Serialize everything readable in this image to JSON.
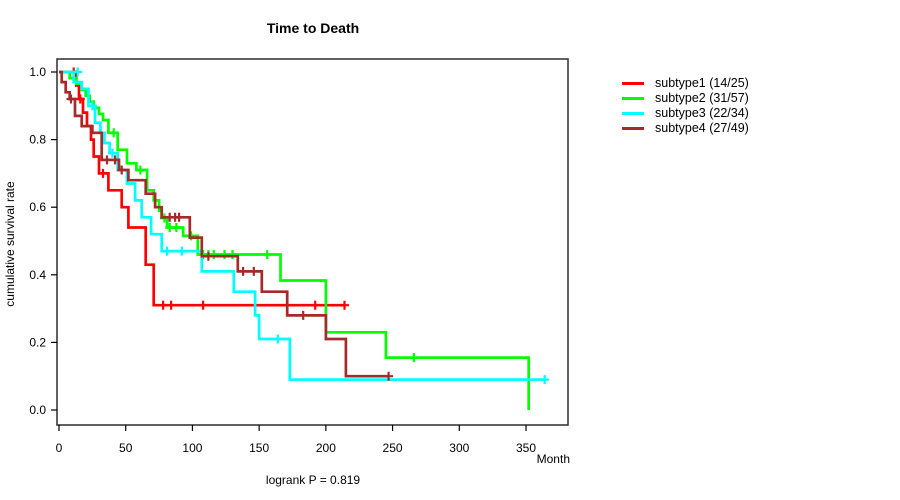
{
  "chart_data": {
    "type": "line",
    "subtype": "kaplan-meier-step-curves",
    "title": "Time to Death",
    "xlabel": "Month",
    "ylabel": "cumulative survival rate",
    "footnote": "logrank P = 0.819",
    "x_axis": {
      "min": 0,
      "max": 381,
      "ticks": [
        {
          "v": 0,
          "label": "0"
        },
        {
          "v": 50,
          "label": "50"
        },
        {
          "v": 100,
          "label": "100"
        },
        {
          "v": 150,
          "label": "150"
        },
        {
          "v": 200,
          "label": "200"
        },
        {
          "v": 250,
          "label": "250"
        },
        {
          "v": 300,
          "label": "300"
        },
        {
          "v": 350,
          "label": "350"
        }
      ]
    },
    "y_axis": {
      "min": 0,
      "max": 1,
      "ticks": [
        {
          "v": 0.0,
          "label": "0.0"
        },
        {
          "v": 0.2,
          "label": "0.2"
        },
        {
          "v": 0.4,
          "label": "0.4"
        },
        {
          "v": 0.6,
          "label": "0.6"
        },
        {
          "v": 0.8,
          "label": "0.8"
        },
        {
          "v": 1.0,
          "label": "1.0"
        }
      ]
    },
    "legend_position": "right-outside",
    "grid": false,
    "series": [
      {
        "name": "subtype1 (14/25)",
        "color": "#FF0000",
        "steps": [
          [
            0,
            1.0
          ],
          [
            13,
            0.96
          ],
          [
            15,
            0.92
          ],
          [
            18,
            0.88
          ],
          [
            21,
            0.84
          ],
          [
            24,
            0.8
          ],
          [
            26,
            0.75
          ],
          [
            30,
            0.7
          ],
          [
            37,
            0.65
          ],
          [
            47,
            0.6
          ],
          [
            52,
            0.54
          ],
          [
            65,
            0.43
          ],
          [
            71,
            0.31
          ],
          [
            215,
            0.31
          ]
        ],
        "censors": [
          [
            11,
            1.0
          ],
          [
            16,
            0.92
          ],
          [
            33,
            0.7
          ],
          [
            78,
            0.31
          ],
          [
            84,
            0.31
          ],
          [
            108,
            0.31
          ],
          [
            192,
            0.31
          ],
          [
            214,
            0.31
          ]
        ]
      },
      {
        "name": "subtype2 (31/57)",
        "color": "#00FF00",
        "steps": [
          [
            0,
            1.0
          ],
          [
            8,
            0.982
          ],
          [
            13,
            0.965
          ],
          [
            17,
            0.947
          ],
          [
            20,
            0.93
          ],
          [
            23,
            0.912
          ],
          [
            26,
            0.894
          ],
          [
            30,
            0.876
          ],
          [
            33,
            0.858
          ],
          [
            37,
            0.82
          ],
          [
            44,
            0.77
          ],
          [
            51,
            0.73
          ],
          [
            58,
            0.71
          ],
          [
            66,
            0.65
          ],
          [
            71,
            0.62
          ],
          [
            75,
            0.59
          ],
          [
            77,
            0.568
          ],
          [
            81,
            0.54
          ],
          [
            93,
            0.515
          ],
          [
            104,
            0.46
          ],
          [
            166,
            0.383
          ],
          [
            200,
            0.23
          ],
          [
            245,
            0.155
          ],
          [
            352,
            0.0
          ]
        ],
        "censors": [
          [
            41,
            0.82
          ],
          [
            61,
            0.71
          ],
          [
            79,
            0.568
          ],
          [
            83,
            0.54
          ],
          [
            88,
            0.54
          ],
          [
            99,
            0.515
          ],
          [
            108,
            0.46
          ],
          [
            112,
            0.46
          ],
          [
            116,
            0.46
          ],
          [
            124,
            0.46
          ],
          [
            130,
            0.46
          ],
          [
            156,
            0.46
          ],
          [
            266,
            0.155
          ]
        ]
      },
      {
        "name": "subtype3 (22/34)",
        "color": "#00FFFF",
        "steps": [
          [
            0,
            1.0
          ],
          [
            11,
            0.97
          ],
          [
            17,
            0.95
          ],
          [
            22,
            0.9
          ],
          [
            27,
            0.85
          ],
          [
            31,
            0.82
          ],
          [
            34,
            0.79
          ],
          [
            38,
            0.76
          ],
          [
            44,
            0.71
          ],
          [
            51,
            0.67
          ],
          [
            57,
            0.62
          ],
          [
            62,
            0.57
          ],
          [
            69,
            0.52
          ],
          [
            77,
            0.47
          ],
          [
            107,
            0.41
          ],
          [
            131,
            0.35
          ],
          [
            147,
            0.28
          ],
          [
            150,
            0.21
          ],
          [
            173,
            0.09
          ],
          [
            364,
            0.09
          ]
        ],
        "censors": [
          [
            14,
            1.0
          ],
          [
            25,
            0.9
          ],
          [
            40,
            0.76
          ],
          [
            81,
            0.47
          ],
          [
            92,
            0.47
          ],
          [
            164,
            0.21
          ],
          [
            364,
            0.09
          ]
        ]
      },
      {
        "name": "subtype4 (27/49)",
        "color": "#A52A2A",
        "steps": [
          [
            0,
            1.0
          ],
          [
            2,
            0.97
          ],
          [
            5,
            0.94
          ],
          [
            8,
            0.92
          ],
          [
            12,
            0.87
          ],
          [
            17,
            0.84
          ],
          [
            25,
            0.82
          ],
          [
            32,
            0.74
          ],
          [
            45,
            0.71
          ],
          [
            52,
            0.68
          ],
          [
            65,
            0.64
          ],
          [
            72,
            0.6
          ],
          [
            77,
            0.57
          ],
          [
            98,
            0.51
          ],
          [
            107,
            0.455
          ],
          [
            134,
            0.41
          ],
          [
            152,
            0.35
          ],
          [
            171,
            0.28
          ],
          [
            200,
            0.21
          ],
          [
            215,
            0.1
          ],
          [
            247,
            0.1
          ]
        ],
        "censors": [
          [
            9,
            0.92
          ],
          [
            36,
            0.74
          ],
          [
            42,
            0.74
          ],
          [
            47,
            0.71
          ],
          [
            83,
            0.57
          ],
          [
            87,
            0.57
          ],
          [
            90,
            0.57
          ],
          [
            112,
            0.455
          ],
          [
            138,
            0.41
          ],
          [
            146,
            0.41
          ],
          [
            183,
            0.28
          ],
          [
            247,
            0.1
          ]
        ]
      }
    ]
  }
}
